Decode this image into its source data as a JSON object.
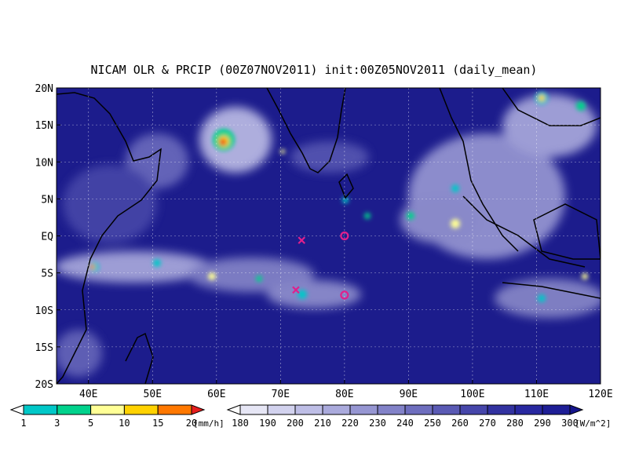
{
  "title": "NICAM OLR & PRCIP (00Z07NOV2011) init:00Z05NOV2011 (daily_mean)",
  "map": {
    "lon_range": [
      35,
      120
    ],
    "lat_range": [
      -20,
      20
    ],
    "lat_labels": [
      "20N",
      "15N",
      "10N",
      "5N",
      "EQ",
      "5S",
      "10S",
      "15S",
      "20S"
    ],
    "lon_labels": [
      "40E",
      "50E",
      "60E",
      "70E",
      "80E",
      "90E",
      "100E",
      "110E",
      "120E"
    ],
    "grid": "dotted",
    "ocean_color": "#1c1c8c"
  },
  "markers": [
    {
      "symbol": "x",
      "lon": 73.3,
      "lat": -0.6,
      "color": "#e0208c"
    },
    {
      "symbol": "o",
      "lon": 80,
      "lat": 0,
      "color": "#e0208c"
    },
    {
      "symbol": "x",
      "lon": 72.4,
      "lat": -7.3,
      "color": "#e0208c"
    },
    {
      "symbol": "o",
      "lon": 80,
      "lat": -8,
      "color": "#e0208c"
    }
  ],
  "precip_colorbar": {
    "labels": [
      "1",
      "3",
      "5",
      "10",
      "15",
      "20"
    ],
    "unit": "[mm/h]",
    "colors": [
      "#ffffff",
      "#00c8c8",
      "#00d28c",
      "#ffff96",
      "#ffd200",
      "#ff7800",
      "#e61e1e"
    ]
  },
  "olr_colorbar": {
    "labels": [
      "180",
      "190",
      "200",
      "210",
      "220",
      "230",
      "240",
      "250",
      "260",
      "270",
      "280",
      "290",
      "300"
    ],
    "unit": "[W/m^2]",
    "colors": [
      "#ffffff",
      "#e6e6f5",
      "#d2d2ee",
      "#bebee6",
      "#aaaadc",
      "#9696d2",
      "#8282c8",
      "#6e6ebe",
      "#5a5ab4",
      "#4646aa",
      "#3232a0",
      "#2828a0",
      "#1e1e96",
      "#14148c"
    ]
  }
}
